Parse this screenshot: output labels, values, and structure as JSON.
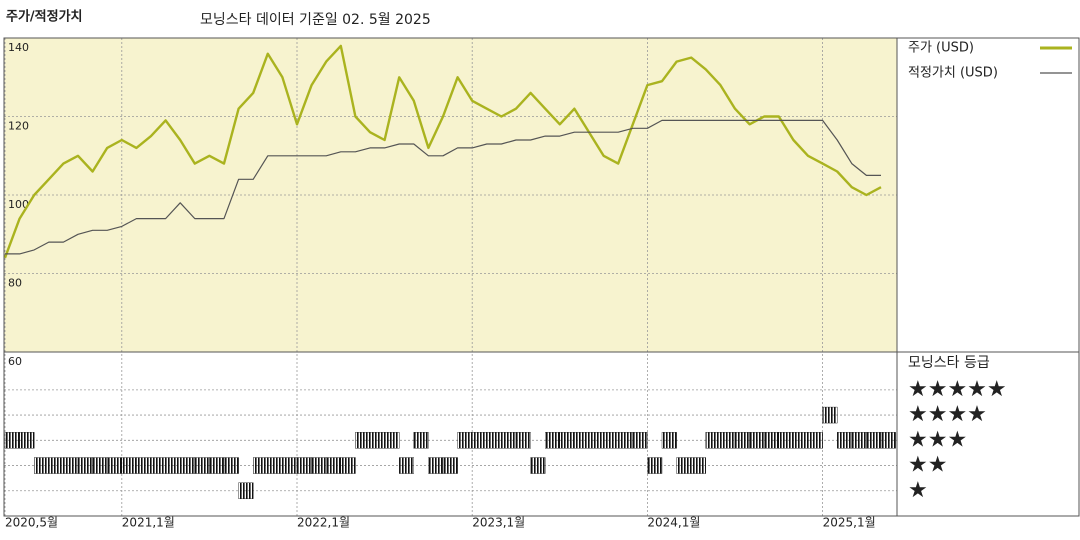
{
  "chart_data": [
    {
      "type": "line",
      "title": "주가/적정가치",
      "subtitle": "모닝스타 데이터 기준일 02. 5월 2025",
      "x": [
        "2020-05",
        "2020-06",
        "2020-07",
        "2020-08",
        "2020-09",
        "2020-10",
        "2020-11",
        "2020-12",
        "2021-01",
        "2021-02",
        "2021-03",
        "2021-04",
        "2021-05",
        "2021-06",
        "2021-07",
        "2021-08",
        "2021-09",
        "2021-10",
        "2021-11",
        "2021-12",
        "2022-01",
        "2022-02",
        "2022-03",
        "2022-04",
        "2022-05",
        "2022-06",
        "2022-07",
        "2022-08",
        "2022-09",
        "2022-10",
        "2022-11",
        "2022-12",
        "2023-01",
        "2023-02",
        "2023-03",
        "2023-04",
        "2023-05",
        "2023-06",
        "2023-07",
        "2023-08",
        "2023-09",
        "2023-10",
        "2023-11",
        "2023-12",
        "2024-01",
        "2024-02",
        "2024-03",
        "2024-04",
        "2024-05",
        "2024-06",
        "2024-07",
        "2024-08",
        "2024-09",
        "2024-10",
        "2024-11",
        "2024-12",
        "2025-01",
        "2025-02",
        "2025-03",
        "2025-04",
        "2025-05"
      ],
      "series": [
        {
          "name": "주가 (USD)",
          "color": "#aab31f",
          "values": [
            84,
            94,
            100,
            104,
            108,
            110,
            106,
            112,
            114,
            112,
            115,
            119,
            114,
            108,
            110,
            108,
            122,
            126,
            136,
            130,
            118,
            128,
            134,
            138,
            120,
            116,
            114,
            130,
            124,
            112,
            120,
            130,
            124,
            122,
            120,
            122,
            126,
            122,
            118,
            122,
            116,
            110,
            108,
            118,
            128,
            129,
            134,
            135,
            132,
            128,
            122,
            118,
            120,
            120,
            114,
            110,
            108,
            106,
            102,
            100,
            102
          ]
        },
        {
          "name": "적정가치 (USD)",
          "color": "#555555",
          "values": [
            85,
            85,
            86,
            88,
            88,
            90,
            91,
            91,
            92,
            94,
            94,
            94,
            98,
            94,
            94,
            94,
            104,
            104,
            110,
            110,
            110,
            110,
            110,
            111,
            111,
            112,
            112,
            113,
            113,
            110,
            110,
            112,
            112,
            113,
            113,
            114,
            114,
            115,
            115,
            116,
            116,
            116,
            116,
            117,
            117,
            119,
            119,
            119,
            119,
            119,
            119,
            119,
            119,
            119,
            119,
            119,
            119,
            114,
            108,
            105,
            105
          ]
        }
      ],
      "ylim": [
        60,
        140
      ],
      "yticks": [
        60,
        80,
        100,
        120,
        140
      ],
      "xticks": [
        {
          "value": "2020-05",
          "label": "2020,5월"
        },
        {
          "value": "2021-01",
          "label": "2021,1월"
        },
        {
          "value": "2022-01",
          "label": "2022,1월"
        },
        {
          "value": "2023-01",
          "label": "2023,1월"
        },
        {
          "value": "2024-01",
          "label": "2024,1월"
        },
        {
          "value": "2025-01",
          "label": "2025,1월"
        }
      ],
      "grid": true
    },
    {
      "type": "rating",
      "title": "모닝스타 등급",
      "color": "#111111",
      "x": [
        "2020-05",
        "2020-06",
        "2020-07",
        "2020-08",
        "2020-09",
        "2020-10",
        "2020-11",
        "2020-12",
        "2021-01",
        "2021-02",
        "2021-03",
        "2021-04",
        "2021-05",
        "2021-06",
        "2021-07",
        "2021-08",
        "2021-09",
        "2021-10",
        "2021-11",
        "2021-12",
        "2022-01",
        "2022-02",
        "2022-03",
        "2022-04",
        "2022-05",
        "2022-06",
        "2022-07",
        "2022-08",
        "2022-09",
        "2022-10",
        "2022-11",
        "2022-12",
        "2023-01",
        "2023-02",
        "2023-03",
        "2023-04",
        "2023-05",
        "2023-06",
        "2023-07",
        "2023-08",
        "2023-09",
        "2023-10",
        "2023-11",
        "2023-12",
        "2024-01",
        "2024-02",
        "2024-03",
        "2024-04",
        "2024-05",
        "2024-06",
        "2024-07",
        "2024-08",
        "2024-09",
        "2024-10",
        "2024-11",
        "2024-12",
        "2025-01",
        "2025-02",
        "2025-03",
        "2025-04",
        "2025-05"
      ],
      "values": [
        3,
        3,
        2,
        2,
        2,
        2,
        2,
        2,
        2,
        2,
        2,
        2,
        2,
        2,
        2,
        2,
        1,
        2,
        2,
        2,
        2,
        2,
        2,
        2,
        3,
        3,
        3,
        2,
        3,
        2,
        2,
        3,
        3,
        3,
        3,
        3,
        2,
        3,
        3,
        3,
        3,
        3,
        3,
        3,
        2,
        3,
        2,
        2,
        3,
        3,
        3,
        3,
        3,
        3,
        3,
        3,
        4,
        3,
        3,
        3,
        3
      ],
      "ylim": [
        0,
        6.5
      ],
      "yticks": [
        {
          "value": 5,
          "label": "★★★★★"
        },
        {
          "value": 4,
          "label": "★★★★"
        },
        {
          "value": 3,
          "label": "★★★"
        },
        {
          "value": 2,
          "label": "★★"
        },
        {
          "value": 1,
          "label": "★"
        }
      ]
    }
  ]
}
